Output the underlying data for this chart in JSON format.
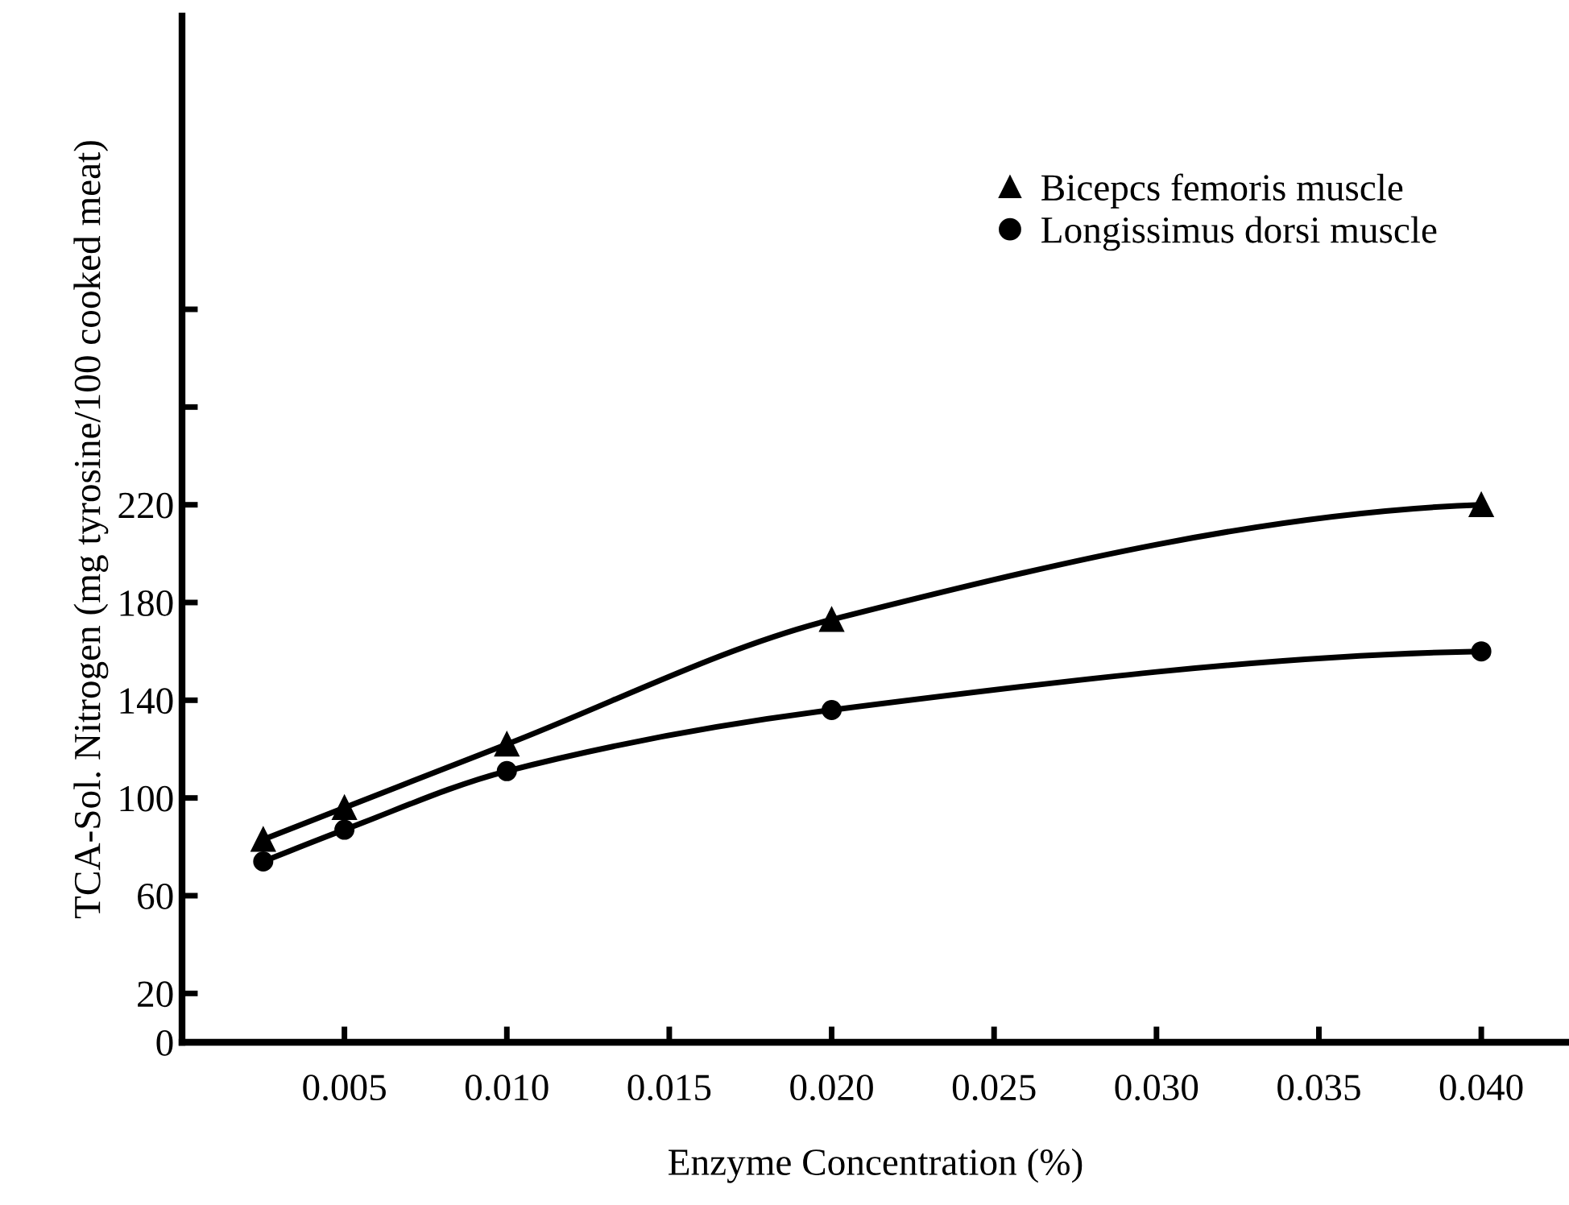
{
  "chart_data": {
    "type": "line",
    "xlabel": "Enzyme Concentration (%)",
    "ylabel": "TCA-Sol. Nitrogen (mg tyrosine/100 cooked meat)",
    "x": [
      0.0025,
      0.005,
      0.01,
      0.02,
      0.04
    ],
    "series": [
      {
        "name": "Bicepcs femoris muscle",
        "color": "#000000",
        "marker": "triangle",
        "values": [
          83,
          96,
          122,
          173,
          220
        ]
      },
      {
        "name": "Longissimus dorsi muscle",
        "color": "#000000",
        "marker": "circle",
        "values": [
          74,
          87,
          111,
          136,
          160
        ]
      }
    ],
    "xlim": [
      0,
      0.0427
    ],
    "xticks": [
      0.005,
      {
        "value": 0.01,
        "label": "0.010"
      },
      0.015,
      {
        "value": 0.02,
        "label": "0.020"
      },
      0.025,
      {
        "value": 0.03,
        "label": "0.030"
      },
      0.035,
      {
        "value": 0.04,
        "label": "0.040"
      }
    ],
    "ylim": [
      0,
      420
    ],
    "yticks": [
      0,
      20,
      60,
      100,
      140,
      180,
      220,
      {
        "value": 260,
        "label": null
      },
      {
        "value": 300,
        "label": null
      }
    ],
    "grid": false,
    "legend": "top right",
    "line_style": "solid"
  }
}
